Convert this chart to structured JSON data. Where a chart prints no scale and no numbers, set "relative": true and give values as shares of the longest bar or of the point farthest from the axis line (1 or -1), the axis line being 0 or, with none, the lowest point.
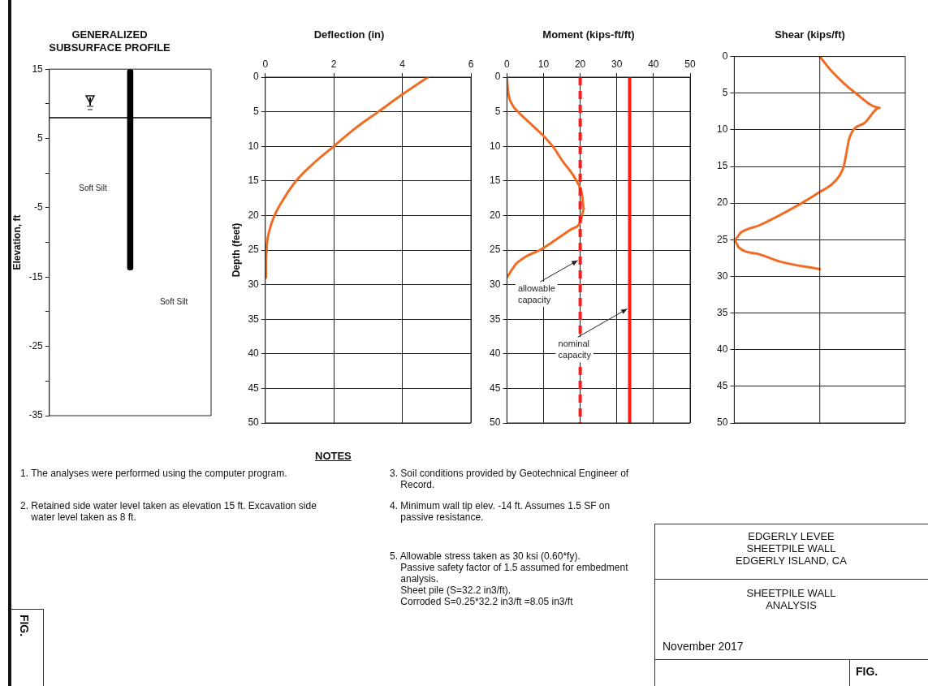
{
  "chart_data": [
    {
      "type": "bar",
      "title": "GENERALIZED\nSUBSURFACE PROFILE",
      "ylabel": "Elevation, ft",
      "categories": [
        null
      ],
      "base": [
        15
      ],
      "values": [
        -29
      ],
      "color": "#000000",
      "ylim": [
        -35,
        15
      ],
      "yticks": [
        -35,
        {
          "value": -30,
          "label": null
        },
        -25,
        {
          "value": -20,
          "label": null
        },
        -15,
        {
          "value": -10,
          "label": null
        },
        -5,
        {
          "value": 0,
          "label": null
        },
        5,
        {
          "value": 10,
          "label": null
        },
        15
      ],
      "tick_labels": "y",
      "ref_lines": [
        {
          "axis": "y",
          "value": 8,
          "color": "#000000"
        }
      ],
      "annotations": [
        "Soft Silt",
        "Soft Silt"
      ]
    },
    {
      "type": "line",
      "title": "Deflection (in)",
      "ylabel": "Depth (feet)",
      "xlim": [
        0,
        6
      ],
      "xticks": [
        0,
        2,
        4,
        6
      ],
      "ylim": [
        50,
        0
      ],
      "yticks": [
        0,
        5,
        10,
        15,
        20,
        25,
        30,
        35,
        40,
        45,
        50
      ],
      "grid": true,
      "marker": "none",
      "series": [
        {
          "color": "#ef6c22",
          "x": [
            4.75,
            4.0,
            3.3,
            2.6,
            2.0,
            1.4,
            0.9,
            0.55,
            0.27,
            0.13,
            0.05,
            0.02,
            0.02
          ],
          "values": [
            0,
            2.5,
            5,
            7.5,
            10,
            12.5,
            15,
            17.5,
            20,
            22,
            24,
            26,
            29
          ]
        }
      ]
    },
    {
      "type": "line",
      "title": "Moment (kips-ft/ft)",
      "xlim": [
        0,
        50
      ],
      "xticks": [
        0,
        10,
        20,
        30,
        40,
        50
      ],
      "ylim": [
        50,
        0
      ],
      "yticks": [
        0,
        5,
        10,
        15,
        20,
        25,
        30,
        35,
        40,
        45,
        50
      ],
      "grid": true,
      "marker": "none",
      "series": [
        {
          "color": "#ef6c22",
          "x": [
            0,
            0.3,
            1.5,
            3,
            7,
            10,
            12.5,
            15,
            19,
            20.5,
            21,
            20.5,
            20,
            17.5,
            12,
            9,
            5,
            2.5,
            0
          ],
          "values": [
            0,
            2,
            4,
            5,
            7,
            8.5,
            10,
            12,
            15,
            17,
            19,
            20,
            21,
            22,
            24,
            25,
            26,
            27,
            29
          ]
        }
      ],
      "ref_lines": [
        {
          "axis": "x",
          "value": 20,
          "label": "allowable capacity",
          "color": "#ff1a1a",
          "line_style": "dashed"
        },
        {
          "axis": "x",
          "value": 33.5,
          "label": "nominal capacity",
          "color": "#ff1a1a",
          "line_style": "solid"
        }
      ]
    },
    {
      "type": "line",
      "title": "Shear (kips/ft)",
      "relative": true,
      "orientation": "horizontal",
      "ylim": [
        50,
        0
      ],
      "yticks": [
        0,
        5,
        10,
        15,
        20,
        25,
        30,
        35,
        40,
        45,
        50
      ],
      "grid": "y",
      "marker": "none",
      "series": [
        {
          "color": "#ef6c22",
          "values": [
            0,
            0.14,
            0.42,
            0.7,
            0.53,
            0.35,
            0.28,
            0.18,
            0,
            -0.21,
            -0.7,
            -0.92,
            -1,
            -0.95,
            -0.7,
            -0.46,
            0
          ],
          "x": [
            0,
            2,
            5,
            7,
            9,
            11,
            15,
            17,
            18.5,
            20,
            23,
            24,
            25,
            26,
            27,
            28,
            29
          ]
        }
      ]
    },
    {
      "type": "other",
      "title": "NOTES",
      "annotations": [
        "1. The analyses were performed using the computer program.",
        "2. Retained side water level taken as elevation 15 ft. Excavation side\n    water level taken as 8 ft.",
        "3. Soil conditions provided by Geotechnical Engineer of\n    Record.",
        "4. Minimum wall tip elev. -14 ft. Assumes 1.5 SF on\n    passive resistance.",
        "5. Allowable stress taken as 30 ksi (0.60*fy).\n    Passive safety factor of 1.5 assumed for embedment\n    analysis.\n    Sheet pile (S=32.2 in3/ft).\n    Corroded S=0.25*32.2 in3/ft =8.05 in3/ft"
      ]
    },
    {
      "type": "other",
      "annotations": [
        "EDGERLY LEVEE\nSHEETPILE WALL\nEDGERLY ISLAND, CA",
        "SHEETPILE WALL\nANALYSIS",
        "November 2017",
        "FIG.",
        "FIG."
      ]
    }
  ]
}
